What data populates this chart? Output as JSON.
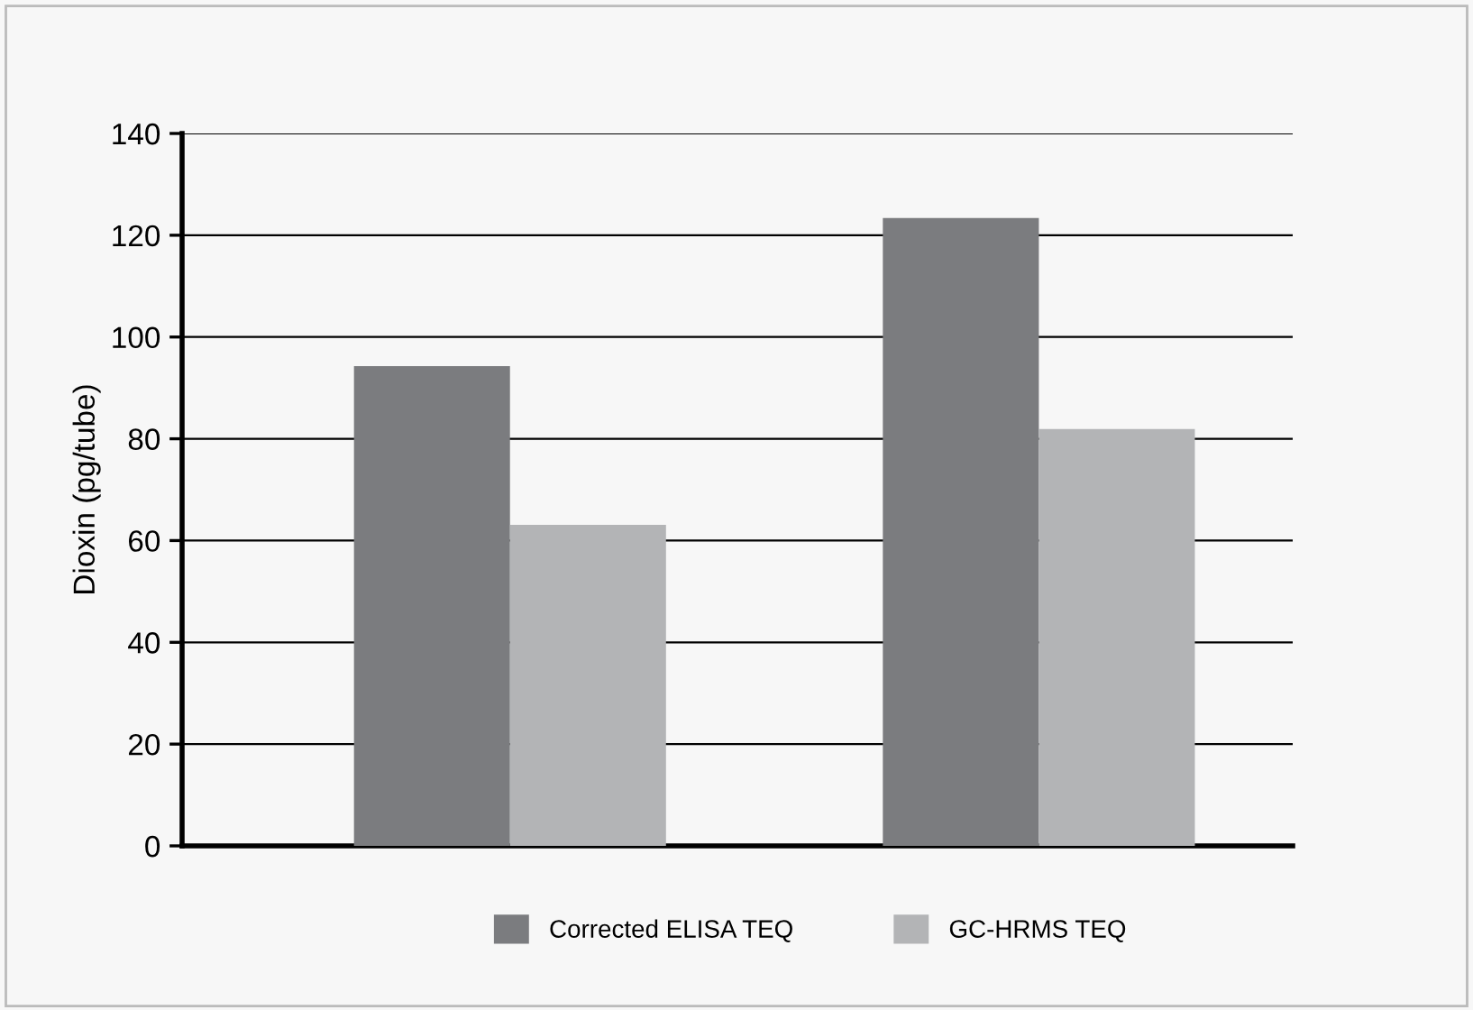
{
  "chart_data": {
    "type": "bar",
    "ylabel": "Dioxin (pg/tube)",
    "categories": [
      null,
      null
    ],
    "series": [
      {
        "name": "Corrected ELISA TEQ",
        "color": "#7b7c7f",
        "values": [
          94.3,
          123.4
        ]
      },
      {
        "name": "GC-HRMS TEQ",
        "color": "#b3b4b6",
        "values": [
          63.1,
          81.9
        ]
      }
    ],
    "ylim": [
      0,
      140
    ],
    "yticks": [
      0,
      20,
      40,
      60,
      80,
      100,
      120,
      140
    ],
    "grid": "y",
    "legend": "bottom"
  }
}
